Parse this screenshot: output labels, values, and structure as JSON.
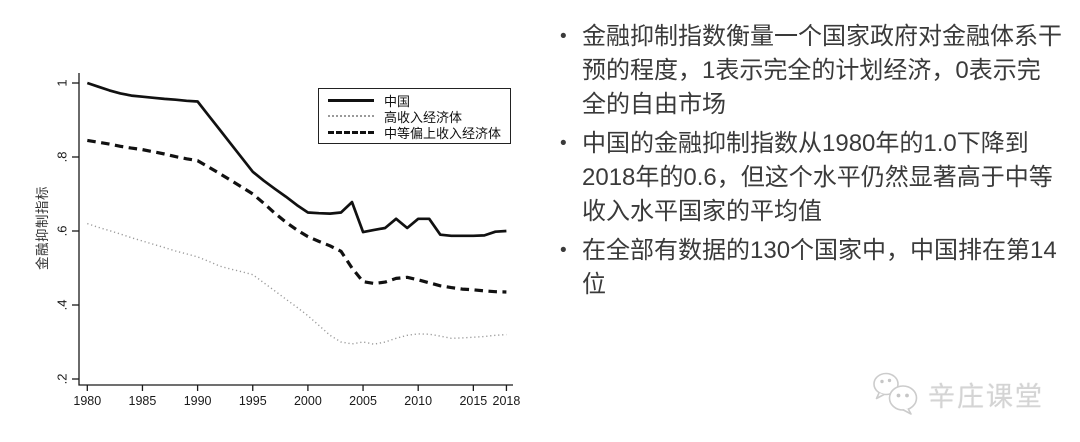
{
  "slide": {
    "background": "#ffffff"
  },
  "bullets": [
    "金融抑制指数衡量一个国家政府对金融体系干预的程度，1表示完全的计划经济，0表示完全的自由市场",
    "中国的金融抑制指数从1980年的1.0下降到2018年的0.6，但这个水平仍然显著高于中等收入水平国家的平均值",
    "在全部有数据的130个国家中，中国排在第14位"
  ],
  "watermark": {
    "text": "辛庄课堂",
    "icon": "wechat-icon",
    "color": "#d4d4d4"
  },
  "colors": {
    "axis": "#1a1a1a",
    "tick_label": "#1a1a1a",
    "bullet_text": "#3a3a3a",
    "china_line": "#111111",
    "high_income_line": "#9a9a9a",
    "upper_middle_line": "#111111"
  },
  "chart_data": {
    "type": "line",
    "title": "",
    "xlabel": "",
    "ylabel": "金融抑制指标",
    "ylim": [
      0.2,
      1.0
    ],
    "xlim": [
      1980,
      2018
    ],
    "grid": false,
    "legend_position": "top-right-inside",
    "x_ticks": [
      1980,
      1985,
      1990,
      1995,
      2000,
      2005,
      2010,
      2015,
      2018
    ],
    "y_ticks": [
      {
        "value": 1.0,
        "label": "1"
      },
      {
        "value": 0.8,
        "label": ".8"
      },
      {
        "value": 0.6,
        "label": ".6"
      },
      {
        "value": 0.4,
        "label": ".4"
      },
      {
        "value": 0.2,
        "label": ".2"
      }
    ],
    "x": [
      1980,
      1981,
      1982,
      1983,
      1984,
      1985,
      1986,
      1987,
      1988,
      1989,
      1990,
      1991,
      1992,
      1993,
      1994,
      1995,
      1996,
      1997,
      1998,
      1999,
      2000,
      2001,
      2002,
      2003,
      2004,
      2005,
      2006,
      2007,
      2008,
      2009,
      2010,
      2011,
      2012,
      2013,
      2014,
      2015,
      2016,
      2017,
      2018
    ],
    "series": [
      {
        "name": "中国",
        "style": "solid",
        "color": "#111111",
        "width": 2.7,
        "values": [
          1.0,
          0.99,
          0.98,
          0.972,
          0.966,
          0.963,
          0.96,
          0.957,
          0.955,
          0.952,
          0.95,
          0.912,
          0.874,
          0.836,
          0.798,
          0.76,
          0.736,
          0.714,
          0.693,
          0.67,
          0.65,
          0.648,
          0.647,
          0.65,
          0.678,
          0.597,
          0.603,
          0.608,
          0.633,
          0.608,
          0.633,
          0.633,
          0.59,
          0.587,
          0.587,
          0.587,
          0.588,
          0.598,
          0.6
        ]
      },
      {
        "name": "高收入经济体",
        "style": "dotted",
        "color": "#9a9a9a",
        "width": 1.4,
        "values": [
          0.62,
          0.61,
          0.601,
          0.592,
          0.582,
          0.573,
          0.564,
          0.555,
          0.546,
          0.538,
          0.53,
          0.518,
          0.505,
          0.497,
          0.49,
          0.482,
          0.46,
          0.438,
          0.416,
          0.394,
          0.371,
          0.345,
          0.318,
          0.3,
          0.295,
          0.3,
          0.294,
          0.3,
          0.31,
          0.318,
          0.322,
          0.321,
          0.316,
          0.31,
          0.311,
          0.313,
          0.315,
          0.318,
          0.32
        ]
      },
      {
        "name": "中等偏上收入经济体",
        "style": "dashed",
        "color": "#111111",
        "width": 3.2,
        "values": [
          0.845,
          0.84,
          0.835,
          0.829,
          0.824,
          0.82,
          0.814,
          0.808,
          0.801,
          0.795,
          0.79,
          0.773,
          0.755,
          0.737,
          0.719,
          0.7,
          0.675,
          0.648,
          0.624,
          0.603,
          0.585,
          0.572,
          0.56,
          0.545,
          0.5,
          0.463,
          0.458,
          0.462,
          0.472,
          0.475,
          0.468,
          0.46,
          0.452,
          0.447,
          0.443,
          0.441,
          0.438,
          0.436,
          0.435
        ]
      }
    ]
  }
}
